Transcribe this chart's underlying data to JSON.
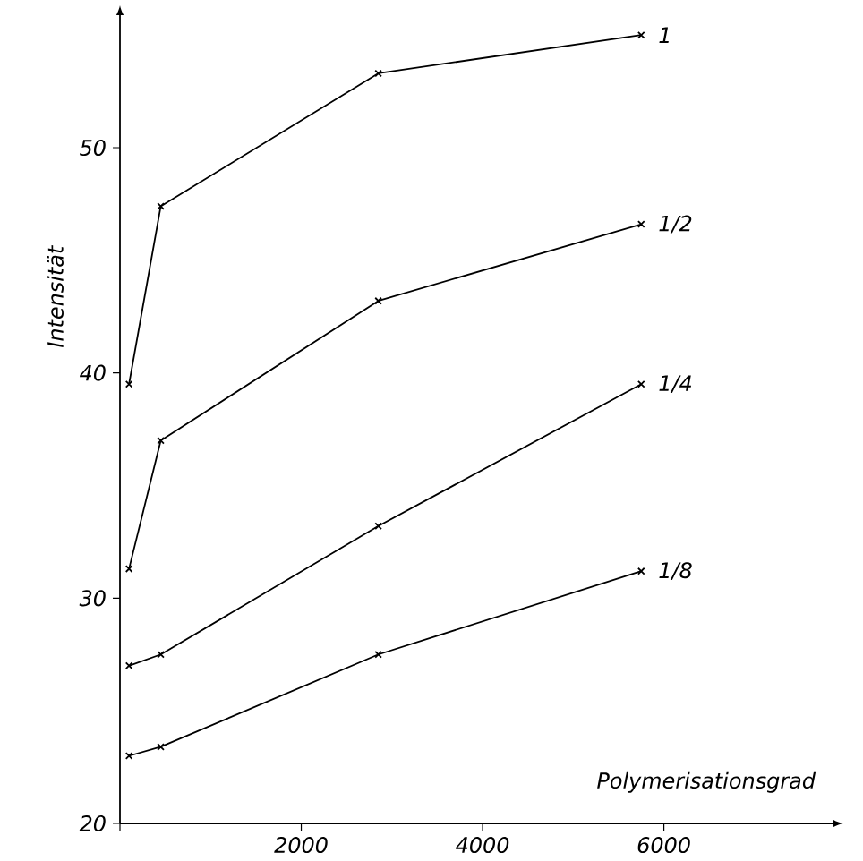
{
  "chart_data": {
    "type": "line",
    "xlabel": "Polymerisationsgrad",
    "ylabel": "Intensität",
    "x": [
      100,
      450,
      2850,
      5750
    ],
    "series": [
      {
        "name": "1",
        "color": "#000000",
        "values": [
          39.5,
          47.4,
          53.3,
          55.0
        ]
      },
      {
        "name": "1/2",
        "color": "#000000",
        "values": [
          31.3,
          37.0,
          43.2,
          46.6
        ]
      },
      {
        "name": "1/4",
        "color": "#000000",
        "values": [
          27.0,
          27.5,
          33.2,
          39.5
        ]
      },
      {
        "name": "1/8",
        "color": "#000000",
        "values": [
          23.0,
          23.4,
          27.5,
          31.2
        ]
      }
    ],
    "xlim": [
      0,
      7900
    ],
    "ylim": [
      20,
      56
    ],
    "xticks": [
      {
        "value": 0,
        "label": null
      },
      2000,
      4000,
      6000
    ],
    "yticks": [
      20,
      30,
      40,
      50
    ],
    "marker": "cross",
    "line_style": "solid",
    "grid": false,
    "legend": false
  }
}
